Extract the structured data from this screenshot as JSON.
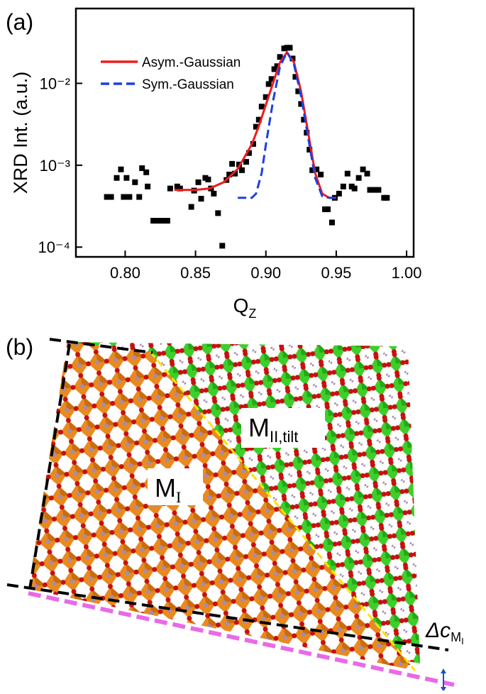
{
  "panel_labels": [
    "(a)",
    "(b)"
  ],
  "chart_data": {
    "type": "scatter",
    "y_label": "XRD Int. (a.u.)",
    "x_label": "Q",
    "x_label_sub": "Z",
    "xlim": [
      0.765,
      1.005
    ],
    "xticks": [
      {
        "value": 0.8,
        "label": "0.80"
      },
      {
        "value": 0.85,
        "label": "0.85"
      },
      {
        "value": 0.9,
        "label": "0.90"
      },
      {
        "value": 0.95,
        "label": "0.95"
      },
      {
        "value": 1.0,
        "label": "1.00"
      }
    ],
    "ylim": [
      7.6e-05,
      0.082
    ],
    "ylog": true,
    "yticks": [
      {
        "value": 0.0001,
        "label": "10⁻⁴"
      },
      {
        "value": 0.001,
        "label": "10⁻³"
      },
      {
        "value": 0.01,
        "label": "10⁻²"
      }
    ],
    "legend": "upper left",
    "series": [
      {
        "type": "scatter",
        "color": "#000000",
        "x": [
          0.787,
          0.79,
          0.794,
          0.797,
          0.799,
          0.803,
          0.801,
          0.807,
          0.81,
          0.812,
          0.815,
          0.816,
          0.82,
          0.823,
          0.826,
          0.83,
          0.832,
          0.837,
          0.839,
          0.847,
          0.849,
          0.852,
          0.854,
          0.857,
          0.859,
          0.861,
          0.863,
          0.866,
          0.869,
          0.872,
          0.874,
          0.876,
          0.878,
          0.881,
          0.883,
          0.886,
          0.888,
          0.891,
          0.893,
          0.895,
          0.897,
          0.9,
          0.902,
          0.904,
          0.906,
          0.908,
          0.91,
          0.913,
          0.915,
          0.917,
          0.919,
          0.921,
          0.923,
          0.925,
          0.927,
          0.929,
          0.931,
          0.933,
          0.936,
          0.939,
          0.942,
          0.944,
          0.947,
          0.949,
          0.952,
          0.955,
          0.958,
          0.961,
          0.963,
          0.966,
          0.969,
          0.972,
          0.974,
          0.977,
          0.98,
          0.984,
          0.986
        ],
        "values": [
          0.00041,
          0.00041,
          0.0007,
          0.00089,
          0.00041,
          0.00041,
          0.0007,
          0.00062,
          0.00041,
          0.00092,
          0.00082,
          0.00055,
          0.00021,
          0.00021,
          0.00021,
          0.00021,
          0.00052,
          0.00055,
          0.00052,
          0.00031,
          0.00049,
          0.00062,
          0.00039,
          0.0007,
          0.00067,
          0.00052,
          0.00045,
          0.00026,
          0.000104,
          0.00066,
          0.00077,
          0.00104,
          0.00079,
          0.00102,
          0.00087,
          0.0011,
          0.00141,
          0.00182,
          0.00295,
          0.0036,
          0.0052,
          0.0068,
          0.0098,
          0.0113,
          0.0149,
          0.0162,
          0.021,
          0.0267,
          0.0272,
          0.0272,
          0.0201,
          0.012,
          0.008,
          0.0056,
          0.0036,
          0.0025,
          0.00155,
          0.00087,
          0.00089,
          0.00077,
          0.00029,
          0.00029,
          0.0002,
          0.0004,
          0.00045,
          0.00055,
          0.00079,
          0.00055,
          0.00052,
          0.0007,
          0.00089,
          0.00079,
          0.0005,
          0.0005,
          0.0005,
          0.0004,
          0.0004
        ]
      },
      {
        "type": "line",
        "name": "Asym.-Gaussian",
        "color": "#ee1c1c",
        "dash": false,
        "x": [
          0.835,
          0.85,
          0.86,
          0.87,
          0.88,
          0.89,
          0.895,
          0.9,
          0.905,
          0.91,
          0.915,
          0.92,
          0.925,
          0.93,
          0.935,
          0.94,
          0.945,
          0.95
        ],
        "values": [
          0.0005,
          0.0005,
          0.00052,
          0.00062,
          0.0009,
          0.0018,
          0.003,
          0.0055,
          0.01,
          0.018,
          0.024,
          0.018,
          0.008,
          0.0025,
          0.0008,
          0.00045,
          0.0004,
          0.0004
        ]
      },
      {
        "type": "line",
        "name": "Sym.-Gaussian",
        "color": "#1c3fe0",
        "dash": true,
        "x": [
          0.88,
          0.89,
          0.893,
          0.897,
          0.9,
          0.905,
          0.91,
          0.915,
          0.92,
          0.925,
          0.93,
          0.935,
          0.94,
          0.945,
          0.95
        ],
        "values": [
          0.0004,
          0.0004,
          0.00045,
          0.0008,
          0.0018,
          0.006,
          0.016,
          0.024,
          0.017,
          0.007,
          0.0022,
          0.0007,
          0.00042,
          0.0004,
          0.0004
        ]
      }
    ]
  },
  "structure": {
    "region_1": {
      "main": "M",
      "sub": "I"
    },
    "region_2": {
      "main": "M",
      "sub": "II,tilt"
    },
    "offset": {
      "main": "Δc",
      "sub": "M",
      "subsub": "I"
    }
  }
}
